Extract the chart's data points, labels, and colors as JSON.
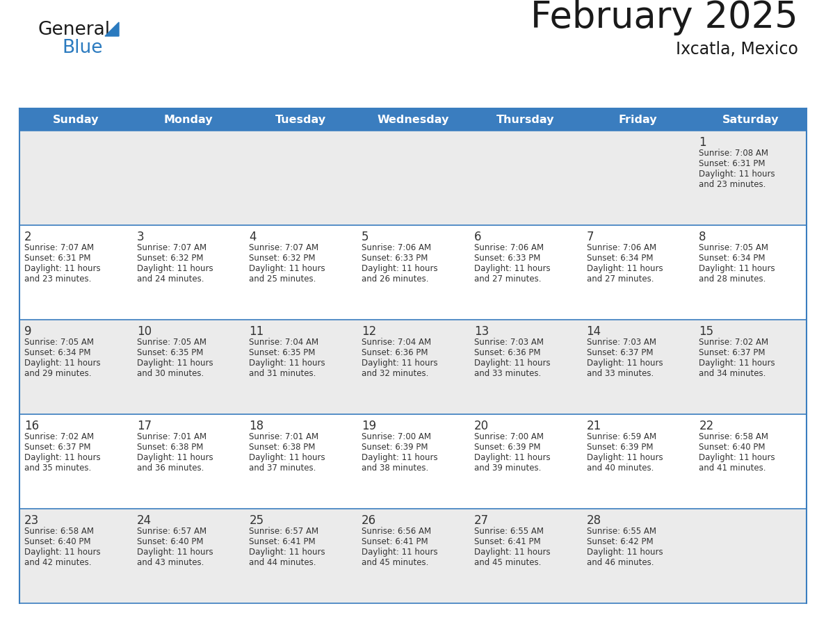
{
  "title": "February 2025",
  "subtitle": "Ixcatla, Mexico",
  "days_of_week": [
    "Sunday",
    "Monday",
    "Tuesday",
    "Wednesday",
    "Thursday",
    "Friday",
    "Saturday"
  ],
  "header_bg": "#3a7dbf",
  "header_text": "#ffffff",
  "row1_top_bg": "#ebebeb",
  "row_odd_bg": "#ebebeb",
  "row_even_bg": "#ffffff",
  "border_color": "#3a7dbf",
  "day_number_color": "#333333",
  "text_color": "#333333",
  "title_color": "#1a1a1a",
  "logo_general_color": "#1a1a1a",
  "logo_blue_color": "#2a7abf",
  "calendar": [
    [
      null,
      null,
      null,
      null,
      null,
      null,
      {
        "day": 1,
        "sunrise": "7:08 AM",
        "sunset": "6:31 PM",
        "daylight": "11 hours",
        "daylight2": "and 23 minutes."
      }
    ],
    [
      {
        "day": 2,
        "sunrise": "7:07 AM",
        "sunset": "6:31 PM",
        "daylight": "11 hours",
        "daylight2": "and 23 minutes."
      },
      {
        "day": 3,
        "sunrise": "7:07 AM",
        "sunset": "6:32 PM",
        "daylight": "11 hours",
        "daylight2": "and 24 minutes."
      },
      {
        "day": 4,
        "sunrise": "7:07 AM",
        "sunset": "6:32 PM",
        "daylight": "11 hours",
        "daylight2": "and 25 minutes."
      },
      {
        "day": 5,
        "sunrise": "7:06 AM",
        "sunset": "6:33 PM",
        "daylight": "11 hours",
        "daylight2": "and 26 minutes."
      },
      {
        "day": 6,
        "sunrise": "7:06 AM",
        "sunset": "6:33 PM",
        "daylight": "11 hours",
        "daylight2": "and 27 minutes."
      },
      {
        "day": 7,
        "sunrise": "7:06 AM",
        "sunset": "6:34 PM",
        "daylight": "11 hours",
        "daylight2": "and 27 minutes."
      },
      {
        "day": 8,
        "sunrise": "7:05 AM",
        "sunset": "6:34 PM",
        "daylight": "11 hours",
        "daylight2": "and 28 minutes."
      }
    ],
    [
      {
        "day": 9,
        "sunrise": "7:05 AM",
        "sunset": "6:34 PM",
        "daylight": "11 hours",
        "daylight2": "and 29 minutes."
      },
      {
        "day": 10,
        "sunrise": "7:05 AM",
        "sunset": "6:35 PM",
        "daylight": "11 hours",
        "daylight2": "and 30 minutes."
      },
      {
        "day": 11,
        "sunrise": "7:04 AM",
        "sunset": "6:35 PM",
        "daylight": "11 hours",
        "daylight2": "and 31 minutes."
      },
      {
        "day": 12,
        "sunrise": "7:04 AM",
        "sunset": "6:36 PM",
        "daylight": "11 hours",
        "daylight2": "and 32 minutes."
      },
      {
        "day": 13,
        "sunrise": "7:03 AM",
        "sunset": "6:36 PM",
        "daylight": "11 hours",
        "daylight2": "and 33 minutes."
      },
      {
        "day": 14,
        "sunrise": "7:03 AM",
        "sunset": "6:37 PM",
        "daylight": "11 hours",
        "daylight2": "and 33 minutes."
      },
      {
        "day": 15,
        "sunrise": "7:02 AM",
        "sunset": "6:37 PM",
        "daylight": "11 hours",
        "daylight2": "and 34 minutes."
      }
    ],
    [
      {
        "day": 16,
        "sunrise": "7:02 AM",
        "sunset": "6:37 PM",
        "daylight": "11 hours",
        "daylight2": "and 35 minutes."
      },
      {
        "day": 17,
        "sunrise": "7:01 AM",
        "sunset": "6:38 PM",
        "daylight": "11 hours",
        "daylight2": "and 36 minutes."
      },
      {
        "day": 18,
        "sunrise": "7:01 AM",
        "sunset": "6:38 PM",
        "daylight": "11 hours",
        "daylight2": "and 37 minutes."
      },
      {
        "day": 19,
        "sunrise": "7:00 AM",
        "sunset": "6:39 PM",
        "daylight": "11 hours",
        "daylight2": "and 38 minutes."
      },
      {
        "day": 20,
        "sunrise": "7:00 AM",
        "sunset": "6:39 PM",
        "daylight": "11 hours",
        "daylight2": "and 39 minutes."
      },
      {
        "day": 21,
        "sunrise": "6:59 AM",
        "sunset": "6:39 PM",
        "daylight": "11 hours",
        "daylight2": "and 40 minutes."
      },
      {
        "day": 22,
        "sunrise": "6:58 AM",
        "sunset": "6:40 PM",
        "daylight": "11 hours",
        "daylight2": "and 41 minutes."
      }
    ],
    [
      {
        "day": 23,
        "sunrise": "6:58 AM",
        "sunset": "6:40 PM",
        "daylight": "11 hours",
        "daylight2": "and 42 minutes."
      },
      {
        "day": 24,
        "sunrise": "6:57 AM",
        "sunset": "6:40 PM",
        "daylight": "11 hours",
        "daylight2": "and 43 minutes."
      },
      {
        "day": 25,
        "sunrise": "6:57 AM",
        "sunset": "6:41 PM",
        "daylight": "11 hours",
        "daylight2": "and 44 minutes."
      },
      {
        "day": 26,
        "sunrise": "6:56 AM",
        "sunset": "6:41 PM",
        "daylight": "11 hours",
        "daylight2": "and 45 minutes."
      },
      {
        "day": 27,
        "sunrise": "6:55 AM",
        "sunset": "6:41 PM",
        "daylight": "11 hours",
        "daylight2": "and 45 minutes."
      },
      {
        "day": 28,
        "sunrise": "6:55 AM",
        "sunset": "6:42 PM",
        "daylight": "11 hours",
        "daylight2": "and 46 minutes."
      },
      null
    ]
  ],
  "fig_width": 11.88,
  "fig_height": 9.18,
  "dpi": 100
}
